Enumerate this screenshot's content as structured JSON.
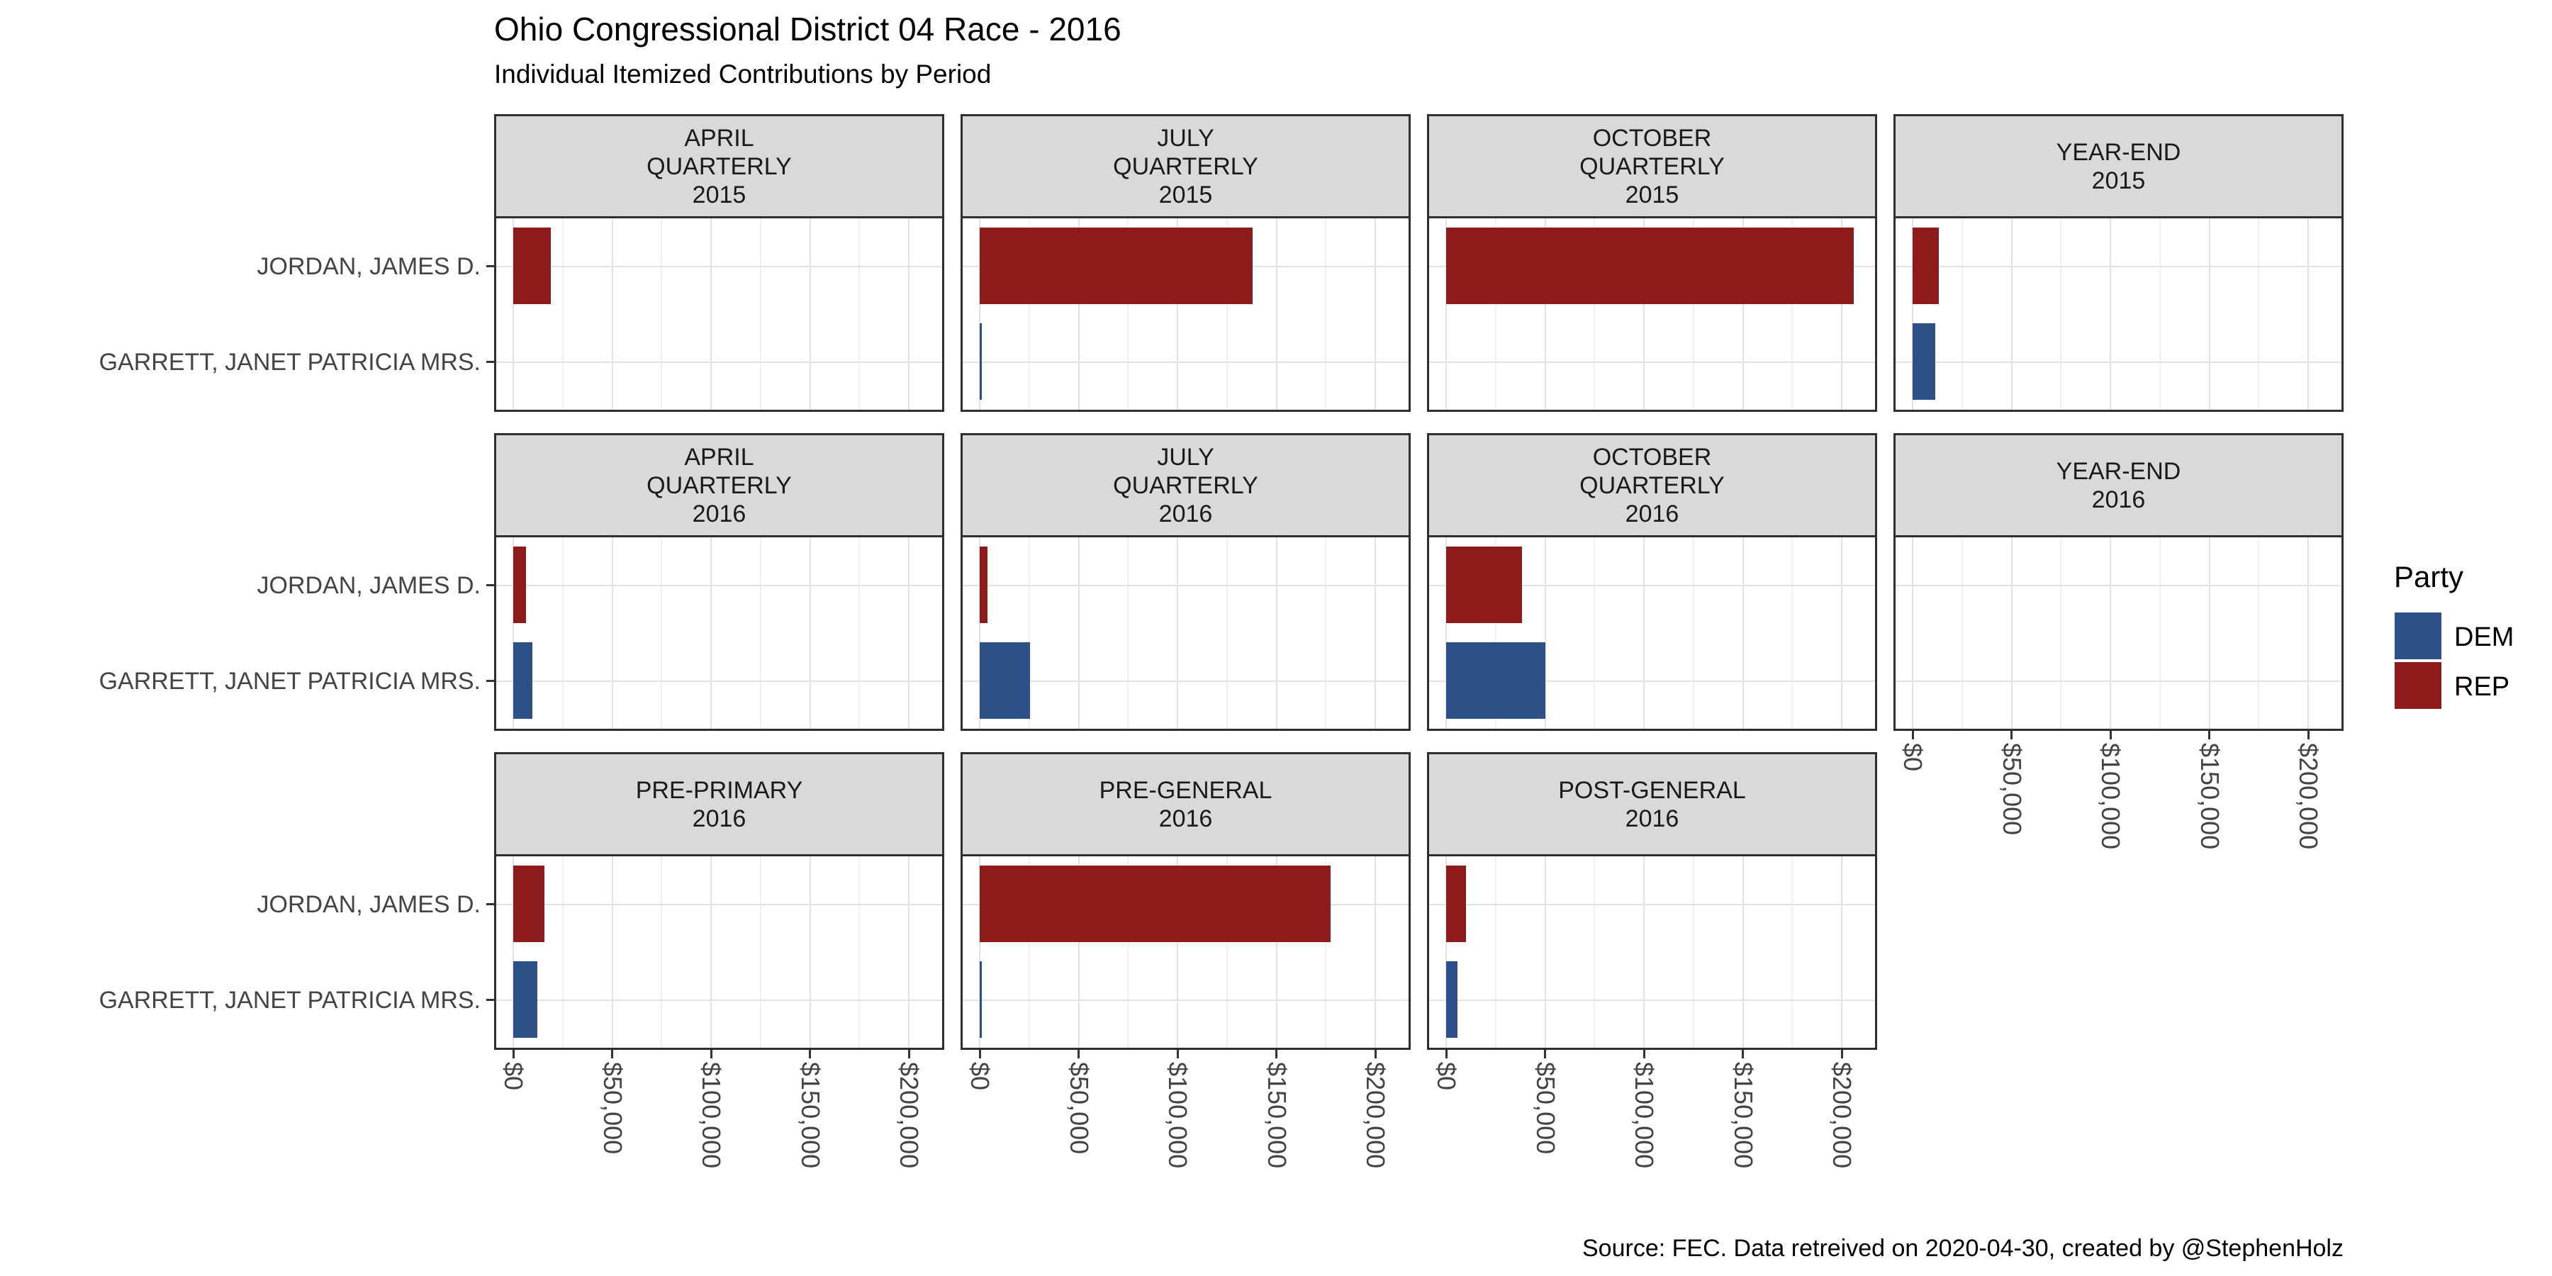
{
  "chart_data": {
    "type": "bar",
    "orientation": "horizontal",
    "title": "Ohio Congressional District 04 Race - 2016",
    "subtitle": "Individual Itemized Contributions by Period",
    "caption": "Source: FEC. Data retreived on 2020-04-30, created by @StephenHolz",
    "legend": {
      "title": "Party",
      "position": "right",
      "entries": [
        {
          "key": "dem",
          "label": "DEM",
          "color": "#2D5186",
          "candidate": "GARRETT, JANET PATRICIA MRS."
        },
        {
          "key": "rep",
          "label": "REP",
          "color": "#8E1B1B",
          "candidate": "JORDAN, JAMES D."
        }
      ]
    },
    "x_axis": {
      "tick_labels": [
        "$0",
        "$50,000",
        "$100,000",
        "$150,000",
        "$200,000"
      ],
      "tick_values": [
        0,
        50000,
        100000,
        150000,
        200000
      ],
      "gridline_step": 25000,
      "max": 200000,
      "label_rotation_deg": 90
    },
    "y_axis": {
      "categories": [
        "JORDAN, JAMES D.",
        "GARRETT, JANET PATRICIA MRS."
      ]
    },
    "grid": {
      "columns": 4,
      "rows": 3,
      "empty_cells": [
        "row3-col4"
      ]
    },
    "facets": [
      {
        "slug": "april-quarterly-2015",
        "header_lines": "APRIL\nQUARTERLY\n2015",
        "values": {
          "rep": 19000,
          "dem": 0
        }
      },
      {
        "slug": "july-quarterly-2015",
        "header_lines": "JULY\nQUARTERLY\n2015",
        "values": {
          "rep": 138000,
          "dem": 1000
        }
      },
      {
        "slug": "october-quarterly-2015",
        "header_lines": "OCTOBER\nQUARTERLY\n2015",
        "values": {
          "rep": 206000,
          "dem": 0
        }
      },
      {
        "slug": "year-end-2015",
        "header_lines": "YEAR-END\n2015",
        "values": {
          "rep": 13200,
          "dem": 11500
        }
      },
      {
        "slug": "april-quarterly-2016",
        "header_lines": "APRIL\nQUARTERLY\n2016",
        "values": {
          "rep": 6500,
          "dem": 9600
        }
      },
      {
        "slug": "july-quarterly-2016",
        "header_lines": "JULY\nQUARTERLY\n2016",
        "values": {
          "rep": 4000,
          "dem": 25400
        }
      },
      {
        "slug": "october-quarterly-2016",
        "header_lines": "OCTOBER\nQUARTERLY\n2016",
        "values": {
          "rep": 38200,
          "dem": 50000
        }
      },
      {
        "slug": "year-end-2016",
        "header_lines": "YEAR-END\n2016",
        "values": {
          "rep": 0,
          "dem": 0
        }
      },
      {
        "slug": "pre-primary-2016",
        "header_lines": "PRE-PRIMARY\n2016",
        "values": {
          "rep": 15600,
          "dem": 12100
        }
      },
      {
        "slug": "pre-general-2016",
        "header_lines": "PRE-GENERAL\n2016",
        "values": {
          "rep": 177500,
          "dem": 1000
        }
      },
      {
        "slug": "post-general-2016",
        "header_lines": "POST-GENERAL\n2016",
        "values": {
          "rep": 10000,
          "dem": 5700
        }
      }
    ],
    "colors": {
      "facet_header_bg": "#D9D9D9",
      "panel_border": "#2F2F2F",
      "grid_major": "#E2E2E2",
      "grid_minor": "#F0F0F0",
      "axis_text": "#444444",
      "dem": "#2D5186",
      "rep": "#8E1B1B"
    }
  }
}
